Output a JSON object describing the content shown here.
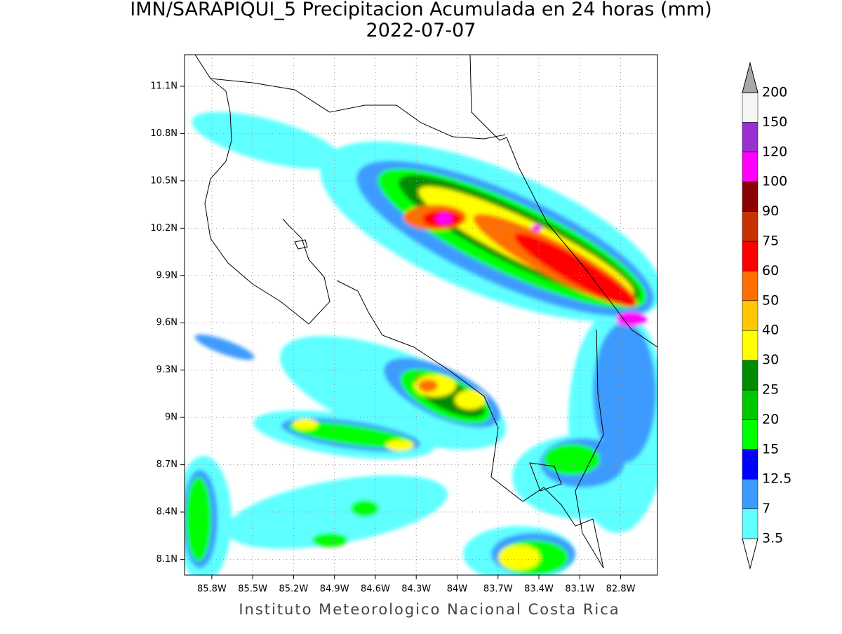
{
  "title": "IMN/SARAPIQUI_5 Precipitacion Acumulada en 24 horas (mm)",
  "subtitle": "2022-07-07",
  "map": {
    "xlim": [
      -86.0,
      -82.53
    ],
    "ylim": [
      8.0,
      11.3
    ],
    "xticks": [
      {
        "value": -85.8,
        "label": "85.8W"
      },
      {
        "value": -85.5,
        "label": "85.5W"
      },
      {
        "value": -85.2,
        "label": "85.2W"
      },
      {
        "value": -84.9,
        "label": "84.9W"
      },
      {
        "value": -84.6,
        "label": "84.6W"
      },
      {
        "value": -84.3,
        "label": "84.3W"
      },
      {
        "value": -84.0,
        "label": "84W"
      },
      {
        "value": -83.7,
        "label": "83.7W"
      },
      {
        "value": -83.4,
        "label": "83.4W"
      },
      {
        "value": -83.1,
        "label": "83.1W"
      },
      {
        "value": -82.8,
        "label": "82.8W"
      }
    ],
    "yticks": [
      {
        "value": 8.1,
        "label": "8.1N"
      },
      {
        "value": 8.4,
        "label": "8.4N"
      },
      {
        "value": 8.7,
        "label": "8.7N"
      },
      {
        "value": 9.0,
        "label": "9N"
      },
      {
        "value": 9.3,
        "label": "9.3N"
      },
      {
        "value": 9.6,
        "label": "9.6N"
      },
      {
        "value": 9.9,
        "label": "9.9N"
      },
      {
        "value": 10.2,
        "label": "10.2N"
      },
      {
        "value": 10.5,
        "label": "10.5N"
      },
      {
        "value": 10.8,
        "label": "10.8N"
      },
      {
        "value": 11.1,
        "label": "11.1N"
      }
    ],
    "grid": true
  },
  "colorbar": {
    "levels": [
      3.5,
      7,
      12.5,
      15,
      20,
      25,
      30,
      40,
      50,
      60,
      75,
      90,
      100,
      120,
      150,
      200
    ],
    "colors": [
      "#5fffff",
      "#3c9bff",
      "#0000ff",
      "#00ff00",
      "#00c800",
      "#008c00",
      "#ffff00",
      "#ffc800",
      "#ff6e00",
      "#ff0000",
      "#c83200",
      "#8b0000",
      "#ff00ff",
      "#9b30d0",
      "#f5f5f5"
    ],
    "under_color": "#ffffff",
    "over_color": "#a8a8a8"
  },
  "footer": "Instituto Meteorologico Nacional Costa Rica"
}
